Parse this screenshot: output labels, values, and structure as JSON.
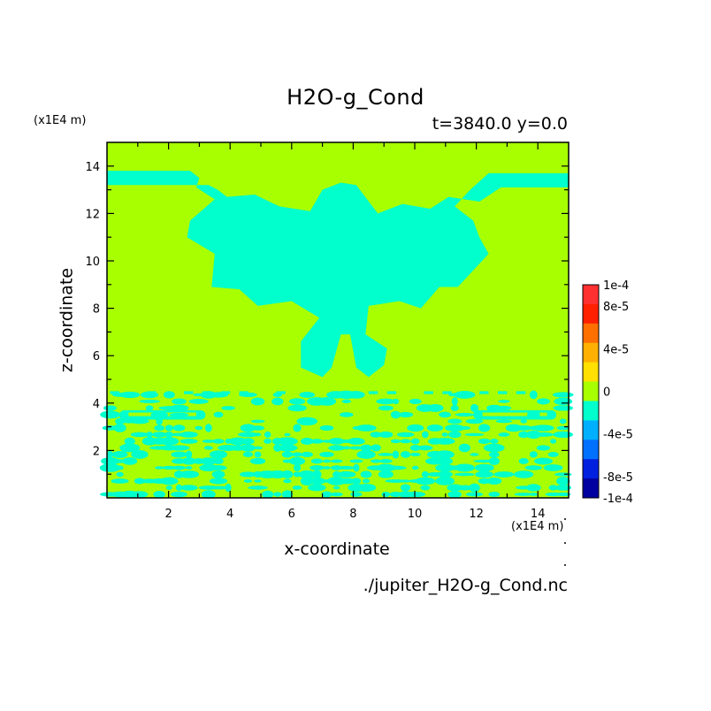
{
  "chart_data": {
    "type": "heatmap",
    "title": "H2O-g_Cond",
    "subtitle": "t=3840.0 y=0.0",
    "xlabel": "x-coordinate",
    "ylabel": "z-coordinate",
    "x_unit": "(x1E4 m)",
    "y_unit": "(x1E4 m)",
    "xlim": [
      0,
      15
    ],
    "ylim": [
      0,
      15
    ],
    "x_ticks": [
      "2",
      "4",
      "6",
      "8",
      "10",
      "12",
      "14"
    ],
    "y_ticks": [
      "2",
      "4",
      "6",
      "8",
      "10",
      "12",
      "14"
    ],
    "colorbar": {
      "range": [
        -0.0001,
        0.0001
      ],
      "labels": [
        "1e-4",
        "8e-5",
        "4e-5",
        "0",
        "-4e-5",
        "-8e-5",
        "-1e-4"
      ],
      "colors": [
        "#ff3030",
        "#ff2000",
        "#ff7000",
        "#ffb000",
        "#ffe000",
        "#a8ff00",
        "#00ffcc",
        "#00b0ff",
        "#0070ff",
        "#0020e0",
        "#0000a0"
      ]
    },
    "background_color": "#a8ff00",
    "region_color": "#00ffcc",
    "field_description_values": {
      "background": 0,
      "negative_regions": -2e-05
    }
  },
  "filename": "./jupiter_H2O-g_Cond.nc"
}
